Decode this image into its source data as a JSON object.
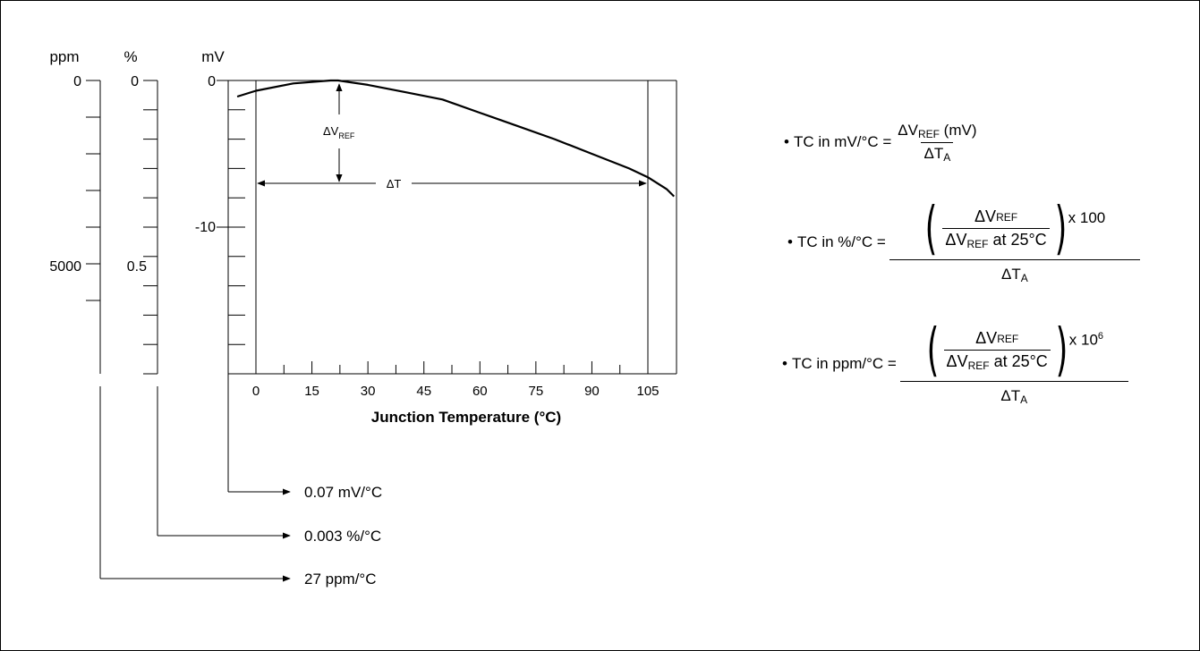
{
  "chart_data": {
    "type": "line",
    "title": "",
    "xlabel": "Junction Temperature (°C)",
    "ylabel": "mV",
    "xlim": [
      -5,
      112
    ],
    "ylim": [
      -20,
      0
    ],
    "x_ticks": [
      "0",
      "15",
      "30",
      "45",
      "60",
      "75",
      "90",
      "105"
    ],
    "y_ticks": [
      "0",
      "-10"
    ],
    "secondary_axes": [
      {
        "label": "%",
        "ticks": [
          "0",
          "0.5"
        ]
      },
      {
        "label": "ppm",
        "ticks": [
          "0",
          "5000"
        ]
      }
    ],
    "series": [
      {
        "x": [
          -5,
          0,
          10,
          20,
          22,
          30,
          40,
          50,
          60,
          70,
          80,
          90,
          100,
          105,
          110,
          112
        ],
        "y": [
          -1.1,
          -0.7,
          -0.2,
          0.0,
          0.0,
          -0.3,
          -0.8,
          -1.3,
          -2.2,
          -3.1,
          -4.0,
          -5.0,
          -6.0,
          -6.6,
          -7.4,
          -7.9
        ]
      }
    ],
    "annotations": {
      "dvref_prefix": "ΔV",
      "dvref_sub": "REF",
      "dt": "ΔT",
      "tc_mv": "0.07 mV/°C",
      "tc_pct": "0.003 %/°C",
      "tc_ppm": "27 ppm/°C"
    }
  },
  "formulas": {
    "bullet": "•",
    "f1": {
      "lhs": "TC in mV/°C =",
      "num_pre": "ΔV",
      "num_sub": "REF",
      "num_post": " (mV)",
      "den_pre": "ΔT",
      "den_sub": "A"
    },
    "f2": {
      "lhs": "TC in %/°C =",
      "in_num_pre": "ΔV",
      "in_num_sub": "REF",
      "in_den_pre": "ΔV",
      "in_den_sub": "REF",
      "in_den_post": " at 25°C",
      "mult": " x 100",
      "den_pre": "ΔT",
      "den_sub": "A"
    },
    "f3": {
      "lhs": "TC in ppm/°C =",
      "in_num_pre": "ΔV",
      "in_num_sub": "REF",
      "in_den_pre": "ΔV",
      "in_den_sub": "REF",
      "in_den_post": " at 25°C",
      "mult": " x 10",
      "mult_sup": "6",
      "den_pre": "ΔT",
      "den_sub": "A"
    }
  }
}
